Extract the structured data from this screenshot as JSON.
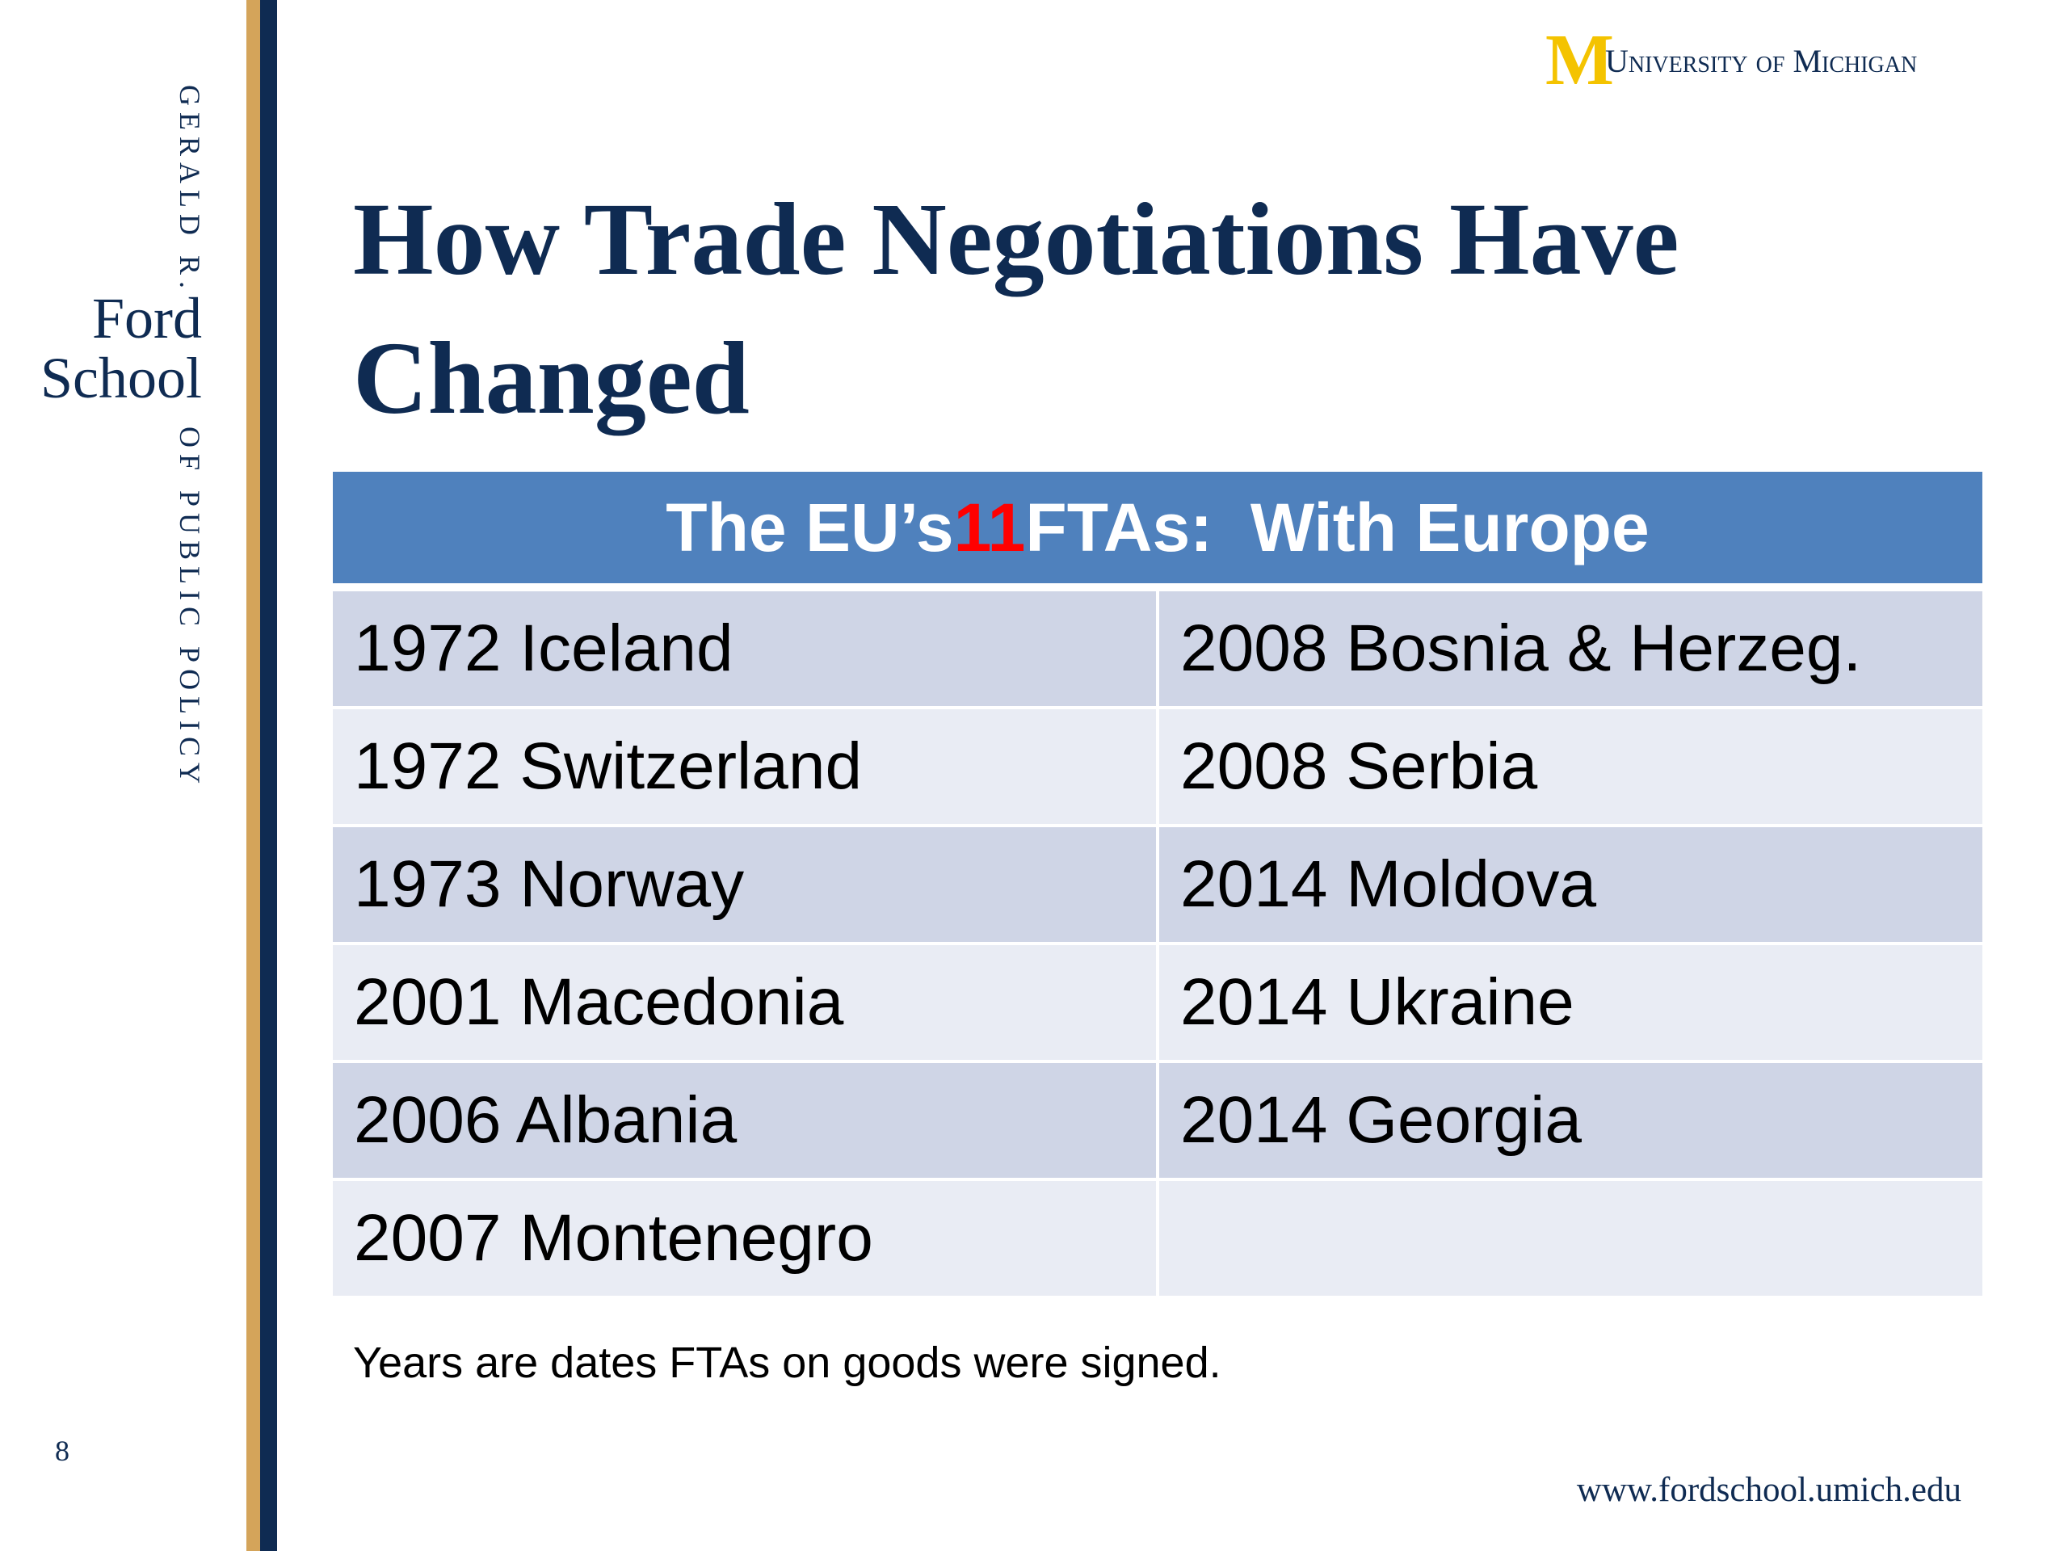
{
  "sidebar": {
    "top": "GERALD R.",
    "name_line1": "Ford",
    "name_line2": "School",
    "bottom": "OF PUBLIC POLICY",
    "page_number": "8"
  },
  "logo": {
    "mark": "M",
    "text": "University of Michigan"
  },
  "title": "How Trade Negotiations Have Changed",
  "table": {
    "header": {
      "prefix": "The EU’s",
      "count": "11",
      "suffix": "FTAs:  With Europe"
    },
    "rows": [
      [
        "1972 Iceland",
        "2008 Bosnia & Herzeg."
      ],
      [
        "1972 Switzerland",
        "2008 Serbia"
      ],
      [
        "1973 Norway",
        "2014 Moldova"
      ],
      [
        "2001 Macedonia",
        "2014 Ukraine"
      ],
      [
        "2006 Albania",
        "2014 Georgia"
      ],
      [
        "2007 Montenegro"
      ]
    ]
  },
  "footnote": "Years are dates FTAs on goods were signed.",
  "footer": {
    "url": "www.fordschool.umich.edu"
  }
}
